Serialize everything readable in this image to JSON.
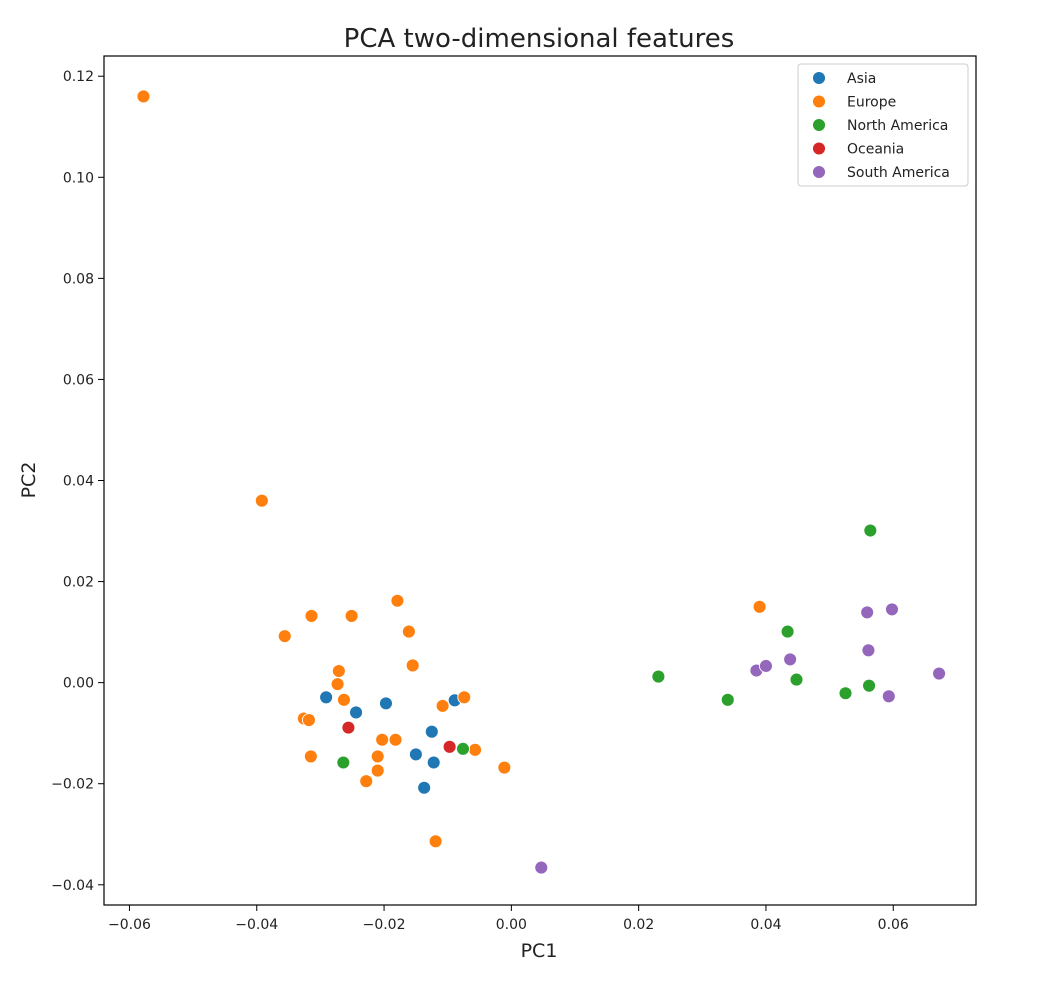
{
  "chart_data": {
    "type": "scatter",
    "title": "PCA two-dimensional features",
    "xlabel": "PC1",
    "ylabel": "PC2",
    "xlim": [
      -0.064,
      0.073
    ],
    "ylim": [
      -0.044,
      0.124
    ],
    "xticks": [
      -0.06,
      -0.04,
      -0.02,
      0.0,
      0.02,
      0.04,
      0.06
    ],
    "xtick_labels": [
      "−0.06",
      "−0.04",
      "−0.02",
      "0.00",
      "0.02",
      "0.04",
      "0.06"
    ],
    "yticks": [
      -0.04,
      -0.02,
      0.0,
      0.02,
      0.04,
      0.06,
      0.08,
      0.1,
      0.12
    ],
    "ytick_labels": [
      "−0.04",
      "−0.02",
      "0.00",
      "0.02",
      "0.04",
      "0.06",
      "0.08",
      "0.10",
      "0.12"
    ],
    "grid": false,
    "legend_position": "top-right",
    "series": [
      {
        "name": "Asia",
        "color": "#1f77b4",
        "points": [
          [
            -0.0291,
            -0.0029
          ],
          [
            -0.0244,
            -0.0059
          ],
          [
            -0.0197,
            -0.0041
          ],
          [
            -0.0125,
            -0.0097
          ],
          [
            -0.0089,
            -0.0035
          ],
          [
            -0.015,
            -0.0142
          ],
          [
            -0.0122,
            -0.0158
          ],
          [
            -0.0137,
            -0.0208
          ]
        ]
      },
      {
        "name": "Europe",
        "color": "#ff7f0e",
        "points": [
          [
            -0.0578,
            0.116
          ],
          [
            -0.0392,
            0.036
          ],
          [
            -0.0356,
            0.0092
          ],
          [
            -0.0314,
            0.0132
          ],
          [
            -0.0251,
            0.0132
          ],
          [
            -0.0179,
            0.0162
          ],
          [
            -0.0161,
            0.0101
          ],
          [
            -0.0155,
            0.0034
          ],
          [
            -0.0271,
            0.0023
          ],
          [
            -0.0273,
            -0.0003
          ],
          [
            -0.0263,
            -0.0034
          ],
          [
            -0.0326,
            -0.0071
          ],
          [
            -0.0318,
            -0.0074
          ],
          [
            -0.0315,
            -0.0146
          ],
          [
            -0.0203,
            -0.0113
          ],
          [
            -0.0182,
            -0.0113
          ],
          [
            -0.021,
            -0.0146
          ],
          [
            -0.021,
            -0.0174
          ],
          [
            -0.0228,
            -0.0195
          ],
          [
            -0.0108,
            -0.0046
          ],
          [
            -0.0074,
            -0.0029
          ],
          [
            -0.0057,
            -0.0133
          ],
          [
            -0.0011,
            -0.0168
          ],
          [
            -0.0119,
            -0.0314
          ],
          [
            0.039,
            0.015
          ]
        ]
      },
      {
        "name": "North America",
        "color": "#2ca02c",
        "points": [
          [
            -0.0264,
            -0.0158
          ],
          [
            -0.0076,
            -0.0131
          ],
          [
            0.0231,
            0.0012
          ],
          [
            0.034,
            -0.0034
          ],
          [
            0.0434,
            0.0101
          ],
          [
            0.0448,
            0.0006
          ],
          [
            0.0525,
            -0.0021
          ],
          [
            0.0562,
            -0.0006
          ],
          [
            0.0564,
            0.0301
          ]
        ]
      },
      {
        "name": "Oceania",
        "color": "#d62728",
        "points": [
          [
            -0.0256,
            -0.0089
          ],
          [
            -0.0097,
            -0.0127
          ]
        ]
      },
      {
        "name": "South America",
        "color": "#9467bd",
        "points": [
          [
            0.0047,
            -0.0366
          ],
          [
            0.0385,
            0.0024
          ],
          [
            0.04,
            0.0033
          ],
          [
            0.0438,
            0.0046
          ],
          [
            0.0559,
            0.0139
          ],
          [
            0.0598,
            0.0145
          ],
          [
            0.0561,
            0.0064
          ],
          [
            0.0593,
            -0.0027
          ],
          [
            0.0672,
            0.0018
          ]
        ]
      }
    ]
  }
}
